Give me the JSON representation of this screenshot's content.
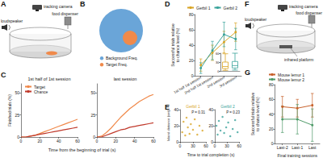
{
  "diagrams": [
    {
      "panel": "A",
      "labels": {
        "camera": "tracking camera",
        "dispenser": "food dispenser",
        "speaker": "loudspeaker"
      }
    },
    {
      "panel": "B",
      "legend": [
        {
          "name": "Background Freq.",
          "color": "#6aa5d8"
        },
        {
          "name": "Target Freq.",
          "color": "#f08a4b"
        }
      ]
    },
    {
      "panel": "F",
      "labels": {
        "camera": "tracking camera",
        "dispenser": "food dispenser",
        "speaker": "loudspeaker",
        "platform": "infrared platform"
      }
    }
  ],
  "chart_data": [
    {
      "panel": "C",
      "type": "line",
      "xlabel": "Time from the beginning of trial (s)",
      "ylabel": "Finished trials (%)",
      "xlim": [
        0,
        60
      ],
      "xticks": [
        0,
        20,
        40,
        60
      ],
      "ylim": [
        0,
        60
      ],
      "yticks": [
        0,
        25,
        50
      ],
      "legend": "upper left",
      "x": [
        0,
        5,
        10,
        15,
        20,
        25,
        30,
        35,
        40,
        45,
        50,
        55,
        60
      ],
      "subplots": [
        {
          "title": "1st half of 1st session",
          "series": [
            {
              "name": "Target",
              "color": "#f0894a",
              "values": [
                0,
                0,
                1,
                2,
                4,
                6,
                8,
                10,
                12,
                14,
                16,
                18,
                20
              ]
            },
            {
              "name": "Chance",
              "color": "#c0392b",
              "values": [
                0,
                0,
                1,
                2,
                3,
                4,
                5,
                6,
                7,
                8,
                9,
                10,
                11
              ]
            }
          ]
        },
        {
          "title": "last session",
          "series": [
            {
              "name": "Target",
              "color": "#f0894a",
              "values": [
                0,
                1,
                5,
                10,
                16,
                22,
                27,
                32,
                36,
                40,
                43,
                46,
                48
              ]
            },
            {
              "name": "Chance",
              "color": "#c0392b",
              "values": [
                0,
                0,
                2,
                4,
                6,
                8,
                9,
                11,
                12,
                13,
                14,
                15,
                16
              ]
            }
          ]
        }
      ]
    },
    {
      "panel": "D",
      "type": "line",
      "marker": "circle",
      "ylabel": "Successful trials relative\nto chance level (%)",
      "categories": [
        "1st half 1st session",
        "2nd half 1st session",
        "2nd session",
        "3rd session"
      ],
      "ylim": [
        0,
        80
      ],
      "yticks": [
        0,
        20,
        40,
        60,
        80
      ],
      "legend": "upper left",
      "series": [
        {
          "name": "Gerbil 1",
          "color": "#d9a526",
          "values": [
            14,
            30,
            44,
            57
          ],
          "errors": [
            8,
            10,
            14,
            12
          ]
        },
        {
          "name": "Gerbil 2",
          "color": "#3aa39b",
          "values": [
            10,
            33,
            54,
            48
          ],
          "errors": [
            7,
            12,
            16,
            14
          ]
        }
      ],
      "inset": {
        "type": "boxplot",
        "ylim": [
          0,
          60
        ],
        "yticks": [
          0,
          30,
          60
        ],
        "series": [
          {
            "name": "Gerbil 1",
            "color": "#d9a526",
            "box": [
              2,
              8,
              15,
              30,
              58
            ]
          },
          {
            "name": "Gerbil 2",
            "color": "#3aa39b",
            "box": [
              3,
              10,
              18,
              32,
              60
            ]
          }
        ]
      }
    },
    {
      "panel": "E",
      "type": "scatter",
      "xlabel": "Time to trial completion (s)",
      "ylabel": "Island distance (cm)",
      "xlim": [
        0,
        60
      ],
      "xticks": [
        0,
        30,
        60
      ],
      "ylim": [
        0,
        40
      ],
      "yticks": [
        0,
        20,
        40
      ],
      "subplots": [
        {
          "title": "Gerbil 1",
          "color": "#d9a526",
          "annotation": "P = 0.31",
          "x": [
            5,
            8,
            12,
            15,
            18,
            22,
            25,
            30,
            34,
            40,
            45,
            52
          ],
          "y": [
            12,
            25,
            8,
            30,
            18,
            10,
            22,
            15,
            28,
            9,
            20,
            14
          ]
        },
        {
          "title": "Gerbil 2",
          "color": "#3aa39b",
          "annotation": "P = 0.23",
          "x": [
            4,
            7,
            10,
            14,
            19,
            23,
            28,
            33,
            38,
            44,
            50,
            56
          ],
          "y": [
            20,
            9,
            26,
            14,
            31,
            11,
            18,
            24,
            7,
            16,
            27,
            12
          ]
        }
      ]
    },
    {
      "panel": "G",
      "type": "line",
      "marker": "circle",
      "xlabel": "Final training sessions",
      "ylabel": "Successful trials relative\nto chance level (%)",
      "categories": [
        "Last-2",
        "Last-1",
        "Last"
      ],
      "ylim": [
        0,
        80
      ],
      "yticks": [
        0,
        20,
        40,
        60,
        80
      ],
      "legend": "upper left",
      "series": [
        {
          "name": "Mouse lemur 1",
          "color": "#c8612b",
          "values": [
            50,
            48,
            52
          ],
          "errors": [
            14,
            12,
            16
          ]
        },
        {
          "name": "Mouse lemur 2",
          "color": "#4e9a68",
          "values": [
            33,
            33,
            25
          ],
          "errors": [
            18,
            20,
            22
          ]
        }
      ]
    }
  ]
}
